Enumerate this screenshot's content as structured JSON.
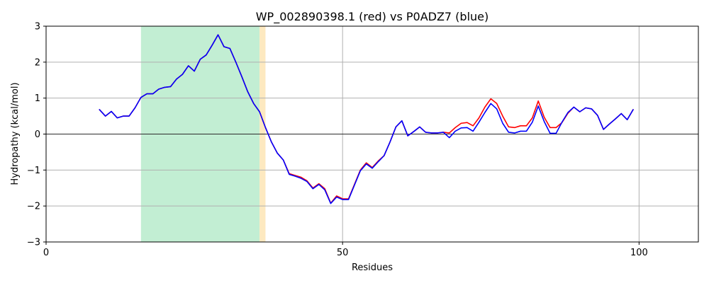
{
  "chart_data": {
    "type": "line",
    "title": "WP_002890398.1 (red) vs P0ADZ7 (blue)",
    "xlabel": "Residues",
    "ylabel": "Hydropathy (kcal/mol)",
    "xlim": [
      0,
      110
    ],
    "ylim": [
      -3,
      3
    ],
    "xticks": [
      0,
      50,
      100
    ],
    "yticks": [
      -3,
      -2,
      -1,
      0,
      1,
      2,
      3
    ],
    "grid": true,
    "zero_line": true,
    "shaded_regions": [
      {
        "x_start": 16,
        "x_end": 36,
        "color": "#c2eed3"
      },
      {
        "x_start": 36,
        "x_end": 37,
        "color": "#fde9c0"
      }
    ],
    "x": [
      9,
      10,
      11,
      12,
      13,
      14,
      15,
      16,
      17,
      18,
      19,
      20,
      21,
      22,
      23,
      24,
      25,
      26,
      27,
      28,
      29,
      30,
      31,
      32,
      33,
      34,
      35,
      36,
      37,
      38,
      39,
      40,
      41,
      42,
      43,
      44,
      45,
      46,
      47,
      48,
      49,
      50,
      51,
      52,
      53,
      54,
      55,
      56,
      57,
      58,
      59,
      60,
      61,
      62,
      63,
      64,
      65,
      66,
      67,
      68,
      69,
      70,
      71,
      72,
      73,
      74,
      75,
      76,
      77,
      78,
      79,
      80,
      81,
      82,
      83,
      84,
      85,
      86,
      87,
      88,
      89,
      90,
      91,
      92,
      93,
      94,
      95,
      96,
      97,
      98,
      99
    ],
    "series": [
      {
        "color": "#ff0000",
        "values": [
          0.68,
          0.5,
          0.63,
          0.45,
          0.5,
          0.5,
          0.73,
          1.02,
          1.12,
          1.12,
          1.25,
          1.3,
          1.32,
          1.53,
          1.66,
          1.9,
          1.75,
          2.08,
          2.2,
          2.47,
          2.76,
          2.43,
          2.38,
          2.0,
          1.6,
          1.18,
          0.85,
          0.62,
          0.18,
          -0.22,
          -0.53,
          -0.72,
          -1.1,
          -1.15,
          -1.2,
          -1.3,
          -1.5,
          -1.38,
          -1.52,
          -1.92,
          -1.72,
          -1.8,
          -1.8,
          -1.4,
          -1.0,
          -0.8,
          -0.93,
          -0.75,
          -0.6,
          -0.22,
          0.2,
          0.37,
          -0.05,
          0.07,
          0.2,
          0.05,
          0.03,
          0.03,
          0.05,
          0.03,
          0.18,
          0.3,
          0.32,
          0.23,
          0.45,
          0.75,
          0.98,
          0.85,
          0.5,
          0.2,
          0.18,
          0.23,
          0.23,
          0.45,
          0.92,
          0.47,
          0.18,
          0.18,
          0.32,
          0.58,
          0.75,
          0.62,
          0.73,
          0.7,
          0.52,
          0.13,
          0.28,
          0.42,
          0.57,
          0.4,
          0.68
        ]
      },
      {
        "color": "#0000ff",
        "values": [
          0.68,
          0.5,
          0.63,
          0.45,
          0.5,
          0.5,
          0.73,
          1.02,
          1.12,
          1.12,
          1.25,
          1.3,
          1.32,
          1.53,
          1.66,
          1.9,
          1.75,
          2.08,
          2.2,
          2.47,
          2.76,
          2.43,
          2.38,
          2.0,
          1.6,
          1.18,
          0.85,
          0.62,
          0.18,
          -0.22,
          -0.53,
          -0.72,
          -1.12,
          -1.17,
          -1.23,
          -1.32,
          -1.52,
          -1.4,
          -1.55,
          -1.93,
          -1.75,
          -1.82,
          -1.82,
          -1.42,
          -1.02,
          -0.83,
          -0.95,
          -0.77,
          -0.6,
          -0.22,
          0.2,
          0.37,
          -0.05,
          0.07,
          0.2,
          0.05,
          0.03,
          0.03,
          0.05,
          -0.1,
          0.08,
          0.17,
          0.18,
          0.08,
          0.33,
          0.6,
          0.85,
          0.7,
          0.3,
          0.05,
          0.03,
          0.08,
          0.08,
          0.33,
          0.78,
          0.35,
          0.02,
          0.02,
          0.33,
          0.6,
          0.75,
          0.62,
          0.73,
          0.7,
          0.52,
          0.13,
          0.28,
          0.42,
          0.57,
          0.4,
          0.68
        ]
      }
    ]
  }
}
